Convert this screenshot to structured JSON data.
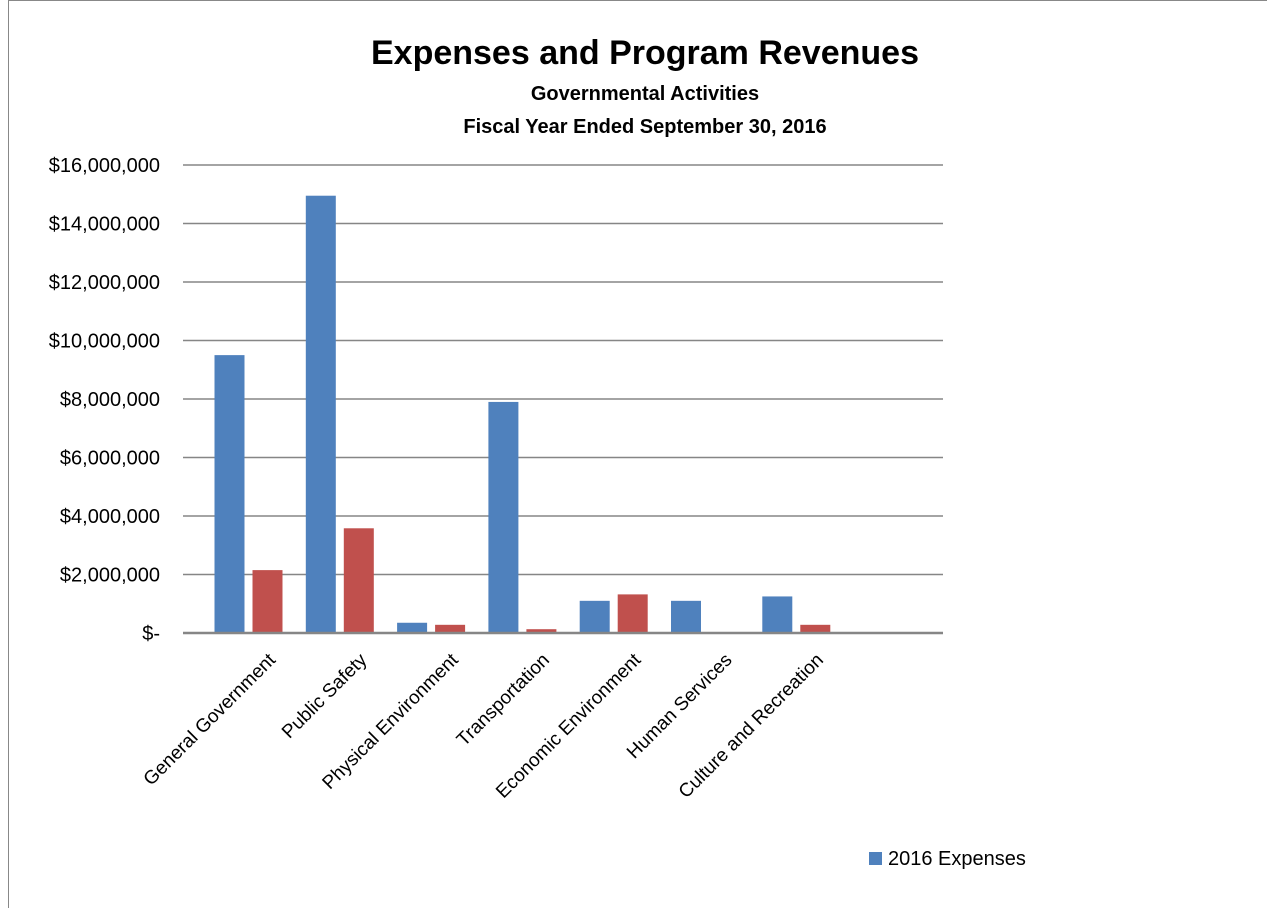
{
  "chart_data": {
    "type": "bar",
    "title": "Expenses and Program Revenues",
    "subtitle_lines": [
      "Governmental Activities",
      "Fiscal Year Ended September 30, 2016"
    ],
    "xlabel": "",
    "ylabel": "",
    "categories": [
      "General Government",
      "Public Safety",
      "Physical Environment",
      "Transportation",
      "Economic Environment",
      "Human Services",
      "Culture and Recreation"
    ],
    "series": [
      {
        "name": "2016 Expenses",
        "color": "#4F81BD",
        "values": [
          9500000,
          14950000,
          350000,
          7900000,
          1100000,
          1100000,
          1250000
        ]
      },
      {
        "color": "#C0504D",
        "values": [
          2150000,
          3580000,
          280000,
          130000,
          1320000,
          0,
          280000
        ]
      }
    ],
    "ylim": [
      0,
      16000000
    ],
    "ytick_labels": [
      "$-",
      "$2,000,000",
      "$4,000,000",
      "$6,000,000",
      "$8,000,000",
      "$10,000,000",
      "$12,000,000",
      "$14,000,000",
      "$16,000,000"
    ],
    "grid": true,
    "legend": {
      "position": "bottom-right",
      "entries": [
        "2016 Expenses"
      ]
    },
    "gridline_color": "#868686",
    "axis_color": "#868686"
  }
}
